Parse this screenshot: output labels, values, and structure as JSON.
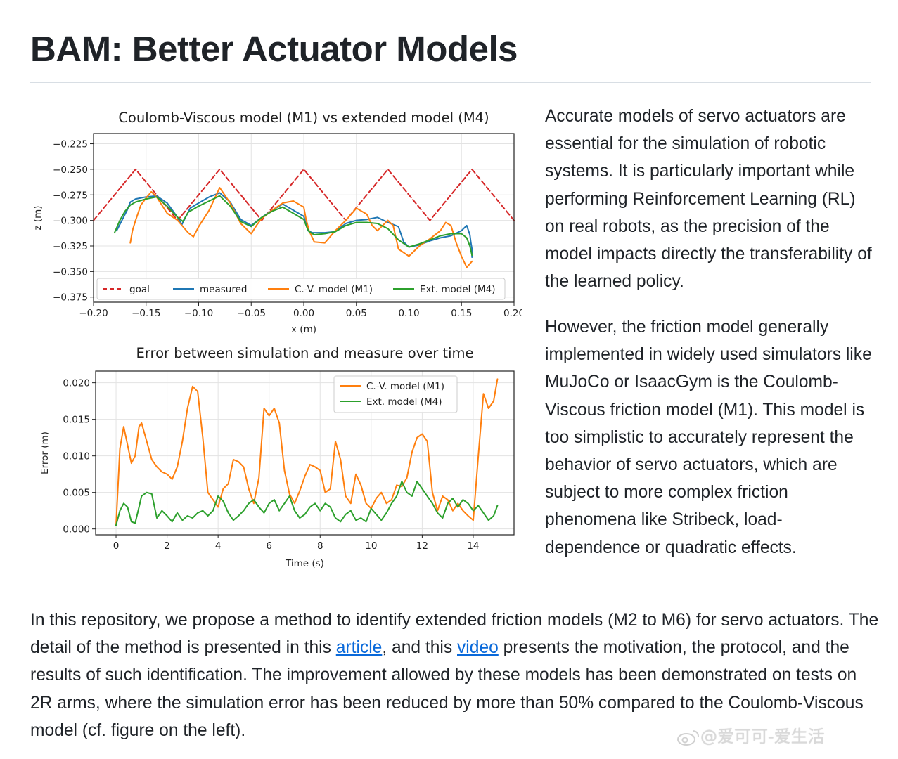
{
  "page": {
    "title": "BAM: Better Actuator Models",
    "side_para_1": "Accurate models of servo actuators are essential for the simulation of robotic systems. It is particularly important while performing Reinforcement Learning (RL) on real robots, as the precision of the model impacts directly the transferability of the learned policy.",
    "side_para_2": "However, the friction model generally implemented in widely used simulators like MuJoCo or IsaacGym is the Coulomb-Viscous friction model (M1). This model is too simplistic to accurately represent the behavior of servo actuators, which are subject to more complex friction phenomena like Stribeck, load-dependence or quadratic effects.",
    "bottom_para": {
      "part1": "In this repository, we propose a method to identify extended friction models (M2 to M6) for servo actuators. The detail of the method is presented in this ",
      "link1": "article",
      "part2": ", and this ",
      "link2": "video",
      "part3": " presents the motivation, the protocol, and the results of such identification. The improvement allowed by these models has been demonstrated on tests on 2R arms, where the simulation error has been reduced by more than 50% compared to the Coulomb-Viscous model (cf. figure on the left)."
    },
    "watermark": "@爱可可-爱生活",
    "link_color": "#0969da"
  },
  "chart_data": [
    {
      "type": "line",
      "title": "Coulomb-Viscous model (M1) vs extended model (M4)",
      "xlabel": "x (m)",
      "ylabel": "z (m)",
      "xlim": [
        -0.2,
        0.2
      ],
      "ylim": [
        -0.38,
        -0.215
      ],
      "xticks": [
        -0.2,
        -0.15,
        -0.1,
        -0.05,
        0.0,
        0.05,
        0.1,
        0.15,
        0.2
      ],
      "xtick_labels": [
        "−0.20",
        "−0.15",
        "−0.10",
        "−0.05",
        "0.00",
        "0.05",
        "0.10",
        "0.15",
        "0.20"
      ],
      "yticks": [
        -0.225,
        -0.25,
        -0.275,
        -0.3,
        -0.325,
        -0.35,
        -0.375
      ],
      "ytick_labels": [
        "−0.225",
        "−0.250",
        "−0.275",
        "−0.300",
        "−0.325",
        "−0.350",
        "−0.375"
      ],
      "grid": true,
      "legend": "lower-center",
      "series": [
        {
          "name": "goal",
          "color": "#d62728",
          "dash": true,
          "x": [
            -0.2,
            -0.16,
            -0.12,
            -0.08,
            -0.04,
            0.0,
            0.04,
            0.08,
            0.12,
            0.16,
            0.2
          ],
          "y": [
            -0.3,
            -0.25,
            -0.3,
            -0.25,
            -0.3,
            -0.25,
            -0.3,
            -0.25,
            -0.3,
            -0.25,
            -0.3
          ]
        },
        {
          "name": "measured",
          "color": "#1f77b4",
          "x": [
            -0.178,
            -0.173,
            -0.168,
            -0.165,
            -0.16,
            -0.15,
            -0.14,
            -0.13,
            -0.12,
            -0.116,
            -0.112,
            -0.108,
            -0.1,
            -0.09,
            -0.08,
            -0.07,
            -0.06,
            -0.05,
            -0.04,
            -0.03,
            -0.02,
            -0.01,
            0.0,
            0.002,
            0.004,
            0.008,
            0.02,
            0.03,
            0.04,
            0.05,
            0.06,
            0.07,
            0.08,
            0.09,
            0.095,
            0.1,
            0.11,
            0.12,
            0.13,
            0.14,
            0.15,
            0.155,
            0.158,
            0.159,
            0.16,
            0.16
          ],
          "y": [
            -0.31,
            -0.3,
            -0.29,
            -0.282,
            -0.279,
            -0.277,
            -0.276,
            -0.283,
            -0.297,
            -0.304,
            -0.296,
            -0.288,
            -0.283,
            -0.277,
            -0.273,
            -0.282,
            -0.299,
            -0.305,
            -0.297,
            -0.29,
            -0.284,
            -0.29,
            -0.296,
            -0.303,
            -0.31,
            -0.312,
            -0.312,
            -0.311,
            -0.303,
            -0.3,
            -0.299,
            -0.297,
            -0.302,
            -0.306,
            -0.321,
            -0.326,
            -0.324,
            -0.32,
            -0.317,
            -0.315,
            -0.31,
            -0.305,
            -0.314,
            -0.322,
            -0.328,
            -0.336
          ]
        },
        {
          "name": "C.-V. model (M1)",
          "color": "#ff7f0e",
          "x": [
            -0.165,
            -0.163,
            -0.16,
            -0.155,
            -0.15,
            -0.145,
            -0.14,
            -0.13,
            -0.12,
            -0.11,
            -0.105,
            -0.1,
            -0.09,
            -0.08,
            -0.07,
            -0.06,
            -0.05,
            -0.045,
            -0.04,
            -0.03,
            -0.02,
            -0.01,
            0.0,
            0.002,
            0.005,
            0.01,
            0.02,
            0.03,
            0.04,
            0.05,
            0.06,
            0.065,
            0.07,
            0.08,
            0.085,
            0.09,
            0.1,
            0.11,
            0.12,
            0.13,
            0.135,
            0.14,
            0.145,
            0.15,
            0.155,
            0.16
          ],
          "y": [
            -0.322,
            -0.31,
            -0.3,
            -0.285,
            -0.278,
            -0.272,
            -0.277,
            -0.293,
            -0.3,
            -0.312,
            -0.316,
            -0.306,
            -0.29,
            -0.268,
            -0.283,
            -0.303,
            -0.313,
            -0.305,
            -0.298,
            -0.29,
            -0.283,
            -0.281,
            -0.287,
            -0.298,
            -0.31,
            -0.321,
            -0.322,
            -0.31,
            -0.3,
            -0.288,
            -0.294,
            -0.305,
            -0.31,
            -0.3,
            -0.305,
            -0.328,
            -0.335,
            -0.325,
            -0.318,
            -0.31,
            -0.302,
            -0.305,
            -0.322,
            -0.335,
            -0.346,
            -0.34
          ]
        },
        {
          "name": "Ext. model (M4)",
          "color": "#2ca02c",
          "x": [
            -0.18,
            -0.175,
            -0.17,
            -0.165,
            -0.16,
            -0.15,
            -0.14,
            -0.13,
            -0.12,
            -0.115,
            -0.11,
            -0.1,
            -0.09,
            -0.08,
            -0.07,
            -0.06,
            -0.05,
            -0.04,
            -0.03,
            -0.02,
            -0.01,
            0.0,
            0.003,
            0.005,
            0.01,
            0.02,
            0.03,
            0.04,
            0.05,
            0.06,
            0.07,
            0.08,
            0.09,
            0.1,
            0.11,
            0.12,
            0.13,
            0.14,
            0.15,
            0.155,
            0.158,
            0.16
          ],
          "y": [
            -0.312,
            -0.3,
            -0.291,
            -0.285,
            -0.282,
            -0.279,
            -0.277,
            -0.286,
            -0.297,
            -0.301,
            -0.292,
            -0.286,
            -0.281,
            -0.276,
            -0.286,
            -0.301,
            -0.306,
            -0.297,
            -0.291,
            -0.287,
            -0.293,
            -0.299,
            -0.307,
            -0.311,
            -0.314,
            -0.313,
            -0.311,
            -0.305,
            -0.302,
            -0.302,
            -0.303,
            -0.308,
            -0.319,
            -0.326,
            -0.323,
            -0.319,
            -0.315,
            -0.313,
            -0.313,
            -0.317,
            -0.325,
            -0.334
          ]
        }
      ]
    },
    {
      "type": "line",
      "title": "Error between simulation and measure over time",
      "xlabel": "Time (s)",
      "ylabel": "Error (m)",
      "xlim": [
        -0.8,
        15.6
      ],
      "ylim": [
        -0.0008,
        0.0216
      ],
      "xticks": [
        0,
        2,
        4,
        6,
        8,
        10,
        12,
        14
      ],
      "xtick_labels": [
        "0",
        "2",
        "4",
        "6",
        "8",
        "10",
        "12",
        "14"
      ],
      "yticks": [
        0.0,
        0.005,
        0.01,
        0.015,
        0.02
      ],
      "ytick_labels": [
        "0.000",
        "0.005",
        "0.010",
        "0.015",
        "0.020"
      ],
      "grid": true,
      "legend": "top-right",
      "series": [
        {
          "name": "C.-V. model (M1)",
          "color": "#ff7f0e",
          "x": [
            0,
            0.15,
            0.3,
            0.45,
            0.6,
            0.75,
            0.9,
            1.0,
            1.2,
            1.4,
            1.6,
            1.8,
            2.0,
            2.2,
            2.4,
            2.6,
            2.8,
            3.0,
            3.2,
            3.4,
            3.6,
            3.8,
            4.0,
            4.2,
            4.4,
            4.6,
            4.8,
            5.0,
            5.2,
            5.4,
            5.6,
            5.8,
            6.0,
            6.2,
            6.4,
            6.6,
            6.8,
            7.0,
            7.2,
            7.4,
            7.6,
            7.8,
            8.0,
            8.2,
            8.4,
            8.6,
            8.8,
            9.0,
            9.2,
            9.4,
            9.6,
            9.8,
            10.0,
            10.2,
            10.4,
            10.6,
            10.8,
            11.0,
            11.2,
            11.4,
            11.6,
            11.8,
            12.0,
            12.2,
            12.4,
            12.6,
            12.8,
            13.0,
            13.2,
            13.4,
            13.6,
            13.8,
            14.0,
            14.2,
            14.4,
            14.6,
            14.8,
            14.95
          ],
          "y": [
            0.0005,
            0.011,
            0.014,
            0.0115,
            0.009,
            0.01,
            0.014,
            0.0145,
            0.012,
            0.0095,
            0.0085,
            0.0078,
            0.0075,
            0.0068,
            0.0085,
            0.012,
            0.0165,
            0.0195,
            0.0188,
            0.0125,
            0.005,
            0.004,
            0.003,
            0.0055,
            0.0062,
            0.0095,
            0.0092,
            0.0085,
            0.0055,
            0.0035,
            0.007,
            0.0165,
            0.0155,
            0.0165,
            0.0145,
            0.008,
            0.0048,
            0.0035,
            0.0052,
            0.0072,
            0.0088,
            0.0085,
            0.008,
            0.005,
            0.0055,
            0.012,
            0.0095,
            0.0045,
            0.0035,
            0.0075,
            0.006,
            0.0035,
            0.0028,
            0.0042,
            0.005,
            0.0035,
            0.004,
            0.006,
            0.0058,
            0.007,
            0.0105,
            0.0125,
            0.013,
            0.012,
            0.005,
            0.0025,
            0.0045,
            0.004,
            0.0025,
            0.0035,
            0.0025,
            0.0018,
            0.0012,
            0.01,
            0.0185,
            0.0165,
            0.0175,
            0.0205
          ]
        },
        {
          "name": "Ext. model (M4)",
          "color": "#2ca02c",
          "x": [
            0,
            0.15,
            0.3,
            0.45,
            0.6,
            0.75,
            0.9,
            1.0,
            1.2,
            1.4,
            1.6,
            1.8,
            2.0,
            2.2,
            2.4,
            2.6,
            2.8,
            3.0,
            3.2,
            3.4,
            3.6,
            3.8,
            4.0,
            4.2,
            4.4,
            4.6,
            4.8,
            5.0,
            5.2,
            5.4,
            5.6,
            5.8,
            6.0,
            6.2,
            6.4,
            6.6,
            6.8,
            7.0,
            7.2,
            7.4,
            7.6,
            7.8,
            8.0,
            8.2,
            8.4,
            8.6,
            8.8,
            9.0,
            9.2,
            9.4,
            9.6,
            9.8,
            10.0,
            10.2,
            10.4,
            10.6,
            10.8,
            11.0,
            11.2,
            11.4,
            11.6,
            11.8,
            12.0,
            12.2,
            12.4,
            12.6,
            12.8,
            13.0,
            13.2,
            13.4,
            13.6,
            13.8,
            14.0,
            14.2,
            14.4,
            14.6,
            14.8,
            14.95
          ],
          "y": [
            0.0005,
            0.0025,
            0.0035,
            0.003,
            0.001,
            0.0008,
            0.003,
            0.0045,
            0.005,
            0.0048,
            0.0015,
            0.0025,
            0.0018,
            0.001,
            0.0022,
            0.0012,
            0.0018,
            0.0015,
            0.0022,
            0.0025,
            0.0018,
            0.0025,
            0.0045,
            0.0038,
            0.0022,
            0.0012,
            0.0018,
            0.0025,
            0.0035,
            0.004,
            0.003,
            0.0022,
            0.0035,
            0.004,
            0.0025,
            0.0035,
            0.0045,
            0.0025,
            0.0015,
            0.002,
            0.003,
            0.0035,
            0.0025,
            0.0035,
            0.003,
            0.0015,
            0.001,
            0.002,
            0.0025,
            0.0012,
            0.0015,
            0.001,
            0.0028,
            0.002,
            0.0012,
            0.0022,
            0.0035,
            0.0045,
            0.0065,
            0.005,
            0.0045,
            0.0065,
            0.0055,
            0.0045,
            0.0035,
            0.0022,
            0.0015,
            0.0035,
            0.0042,
            0.003,
            0.004,
            0.0035,
            0.0025,
            0.0032,
            0.0022,
            0.0012,
            0.0018,
            0.0032
          ]
        }
      ]
    }
  ]
}
